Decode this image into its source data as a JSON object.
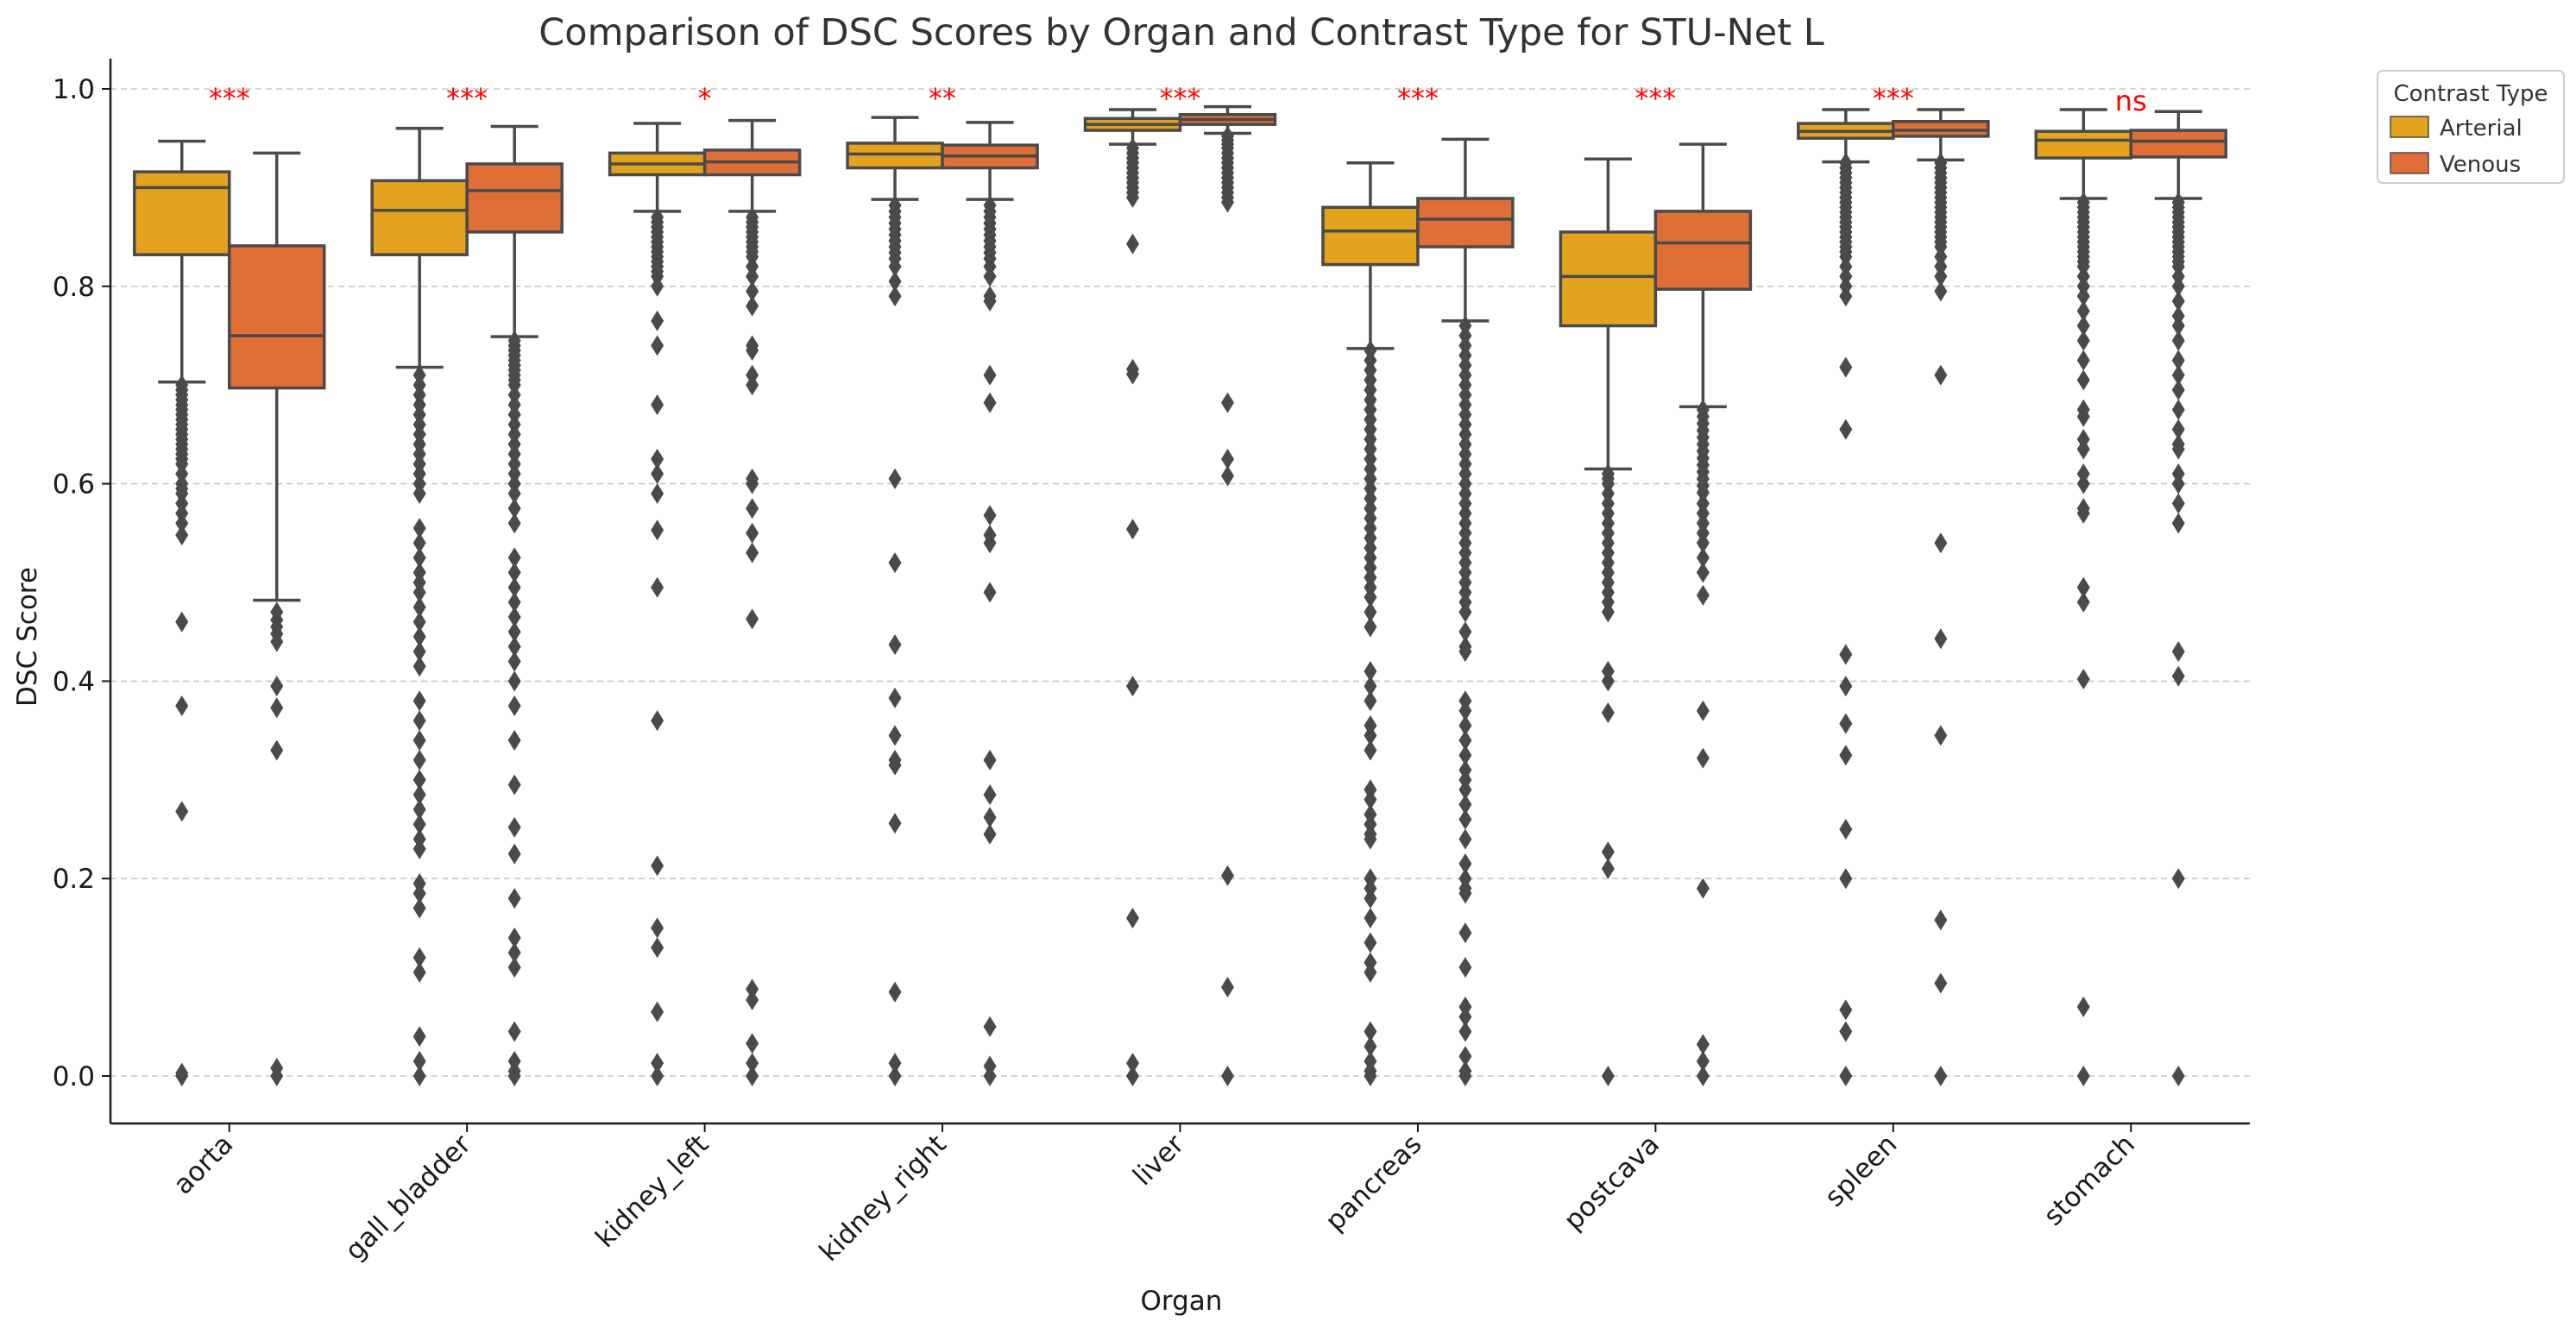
{
  "chart_data": {
    "type": "box",
    "title": "Comparison of DSC Scores by Organ and Contrast Type for STU-Net L",
    "xlabel": "Organ",
    "ylabel": "DSC Score",
    "ylim": [
      -0.05,
      1.03
    ],
    "yticks": [
      "0.0",
      "0.2",
      "0.4",
      "0.6",
      "0.8",
      "1.0"
    ],
    "grid": "horizontal dashed",
    "legend": {
      "title": "Contrast Type",
      "placement": "outside top-right",
      "entries": [
        "Arterial",
        "Venous"
      ]
    },
    "colors": {
      "Arterial": "#e3a31e",
      "Venous": "#e06f37",
      "lines": "#4a4a4a",
      "significance": "#ff0000",
      "grid": "#c8c8c8"
    },
    "categories": [
      "aorta",
      "gall_bladder",
      "kidney_left",
      "kidney_right",
      "liver",
      "pancreas",
      "postcava",
      "spleen",
      "stomach"
    ],
    "significance": [
      "***",
      "***",
      "*",
      "**",
      "***",
      "***",
      "***",
      "***",
      "ns"
    ],
    "series": [
      {
        "name": "Arterial",
        "boxes": [
          {
            "whislo": 0.703,
            "q1": 0.832,
            "med": 0.9,
            "q3": 0.916,
            "whishi": 0.947,
            "fliers": [
              0.7,
              0.695,
              0.69,
              0.685,
              0.68,
              0.675,
              0.67,
              0.665,
              0.66,
              0.655,
              0.65,
              0.645,
              0.64,
              0.635,
              0.63,
              0.625,
              0.62,
              0.61,
              0.6,
              0.595,
              0.59,
              0.58,
              0.57,
              0.56,
              0.548,
              0.46,
              0.375,
              0.268,
              0.003,
              0.0
            ]
          },
          {
            "whislo": 0.718,
            "q1": 0.832,
            "med": 0.877,
            "q3": 0.907,
            "whishi": 0.96,
            "fliers": [
              0.71,
              0.7,
              0.69,
              0.68,
              0.67,
              0.66,
              0.65,
              0.64,
              0.63,
              0.62,
              0.61,
              0.6,
              0.59,
              0.555,
              0.54,
              0.525,
              0.51,
              0.5,
              0.49,
              0.475,
              0.46,
              0.445,
              0.43,
              0.415,
              0.38,
              0.36,
              0.34,
              0.32,
              0.3,
              0.285,
              0.27,
              0.255,
              0.24,
              0.23,
              0.195,
              0.185,
              0.17,
              0.12,
              0.105,
              0.04,
              0.015,
              0.0
            ]
          },
          {
            "whislo": 0.876,
            "q1": 0.913,
            "med": 0.924,
            "q3": 0.935,
            "whishi": 0.965,
            "fliers": [
              0.87,
              0.865,
              0.86,
              0.855,
              0.85,
              0.845,
              0.84,
              0.835,
              0.83,
              0.825,
              0.82,
              0.815,
              0.81,
              0.8,
              0.765,
              0.74,
              0.68,
              0.625,
              0.61,
              0.59,
              0.553,
              0.495,
              0.36,
              0.213,
              0.15,
              0.13,
              0.065,
              0.013,
              0.0
            ]
          },
          {
            "whislo": 0.888,
            "q1": 0.92,
            "med": 0.934,
            "q3": 0.945,
            "whishi": 0.971,
            "fliers": [
              0.882,
              0.876,
              0.87,
              0.864,
              0.858,
              0.852,
              0.846,
              0.84,
              0.834,
              0.828,
              0.82,
              0.805,
              0.79,
              0.605,
              0.52,
              0.437,
              0.383,
              0.345,
              0.32,
              0.315,
              0.256,
              0.085,
              0.013,
              0.0
            ]
          },
          {
            "whislo": 0.944,
            "q1": 0.958,
            "med": 0.964,
            "q3": 0.97,
            "whishi": 0.979,
            "fliers": [
              0.94,
              0.935,
              0.93,
              0.925,
              0.92,
              0.915,
              0.91,
              0.905,
              0.9,
              0.895,
              0.89,
              0.843,
              0.716,
              0.711,
              0.554,
              0.395,
              0.16,
              0.013,
              0.0
            ]
          },
          {
            "whislo": 0.737,
            "q1": 0.822,
            "med": 0.856,
            "q3": 0.88,
            "whishi": 0.925,
            "fliers": [
              0.735,
              0.725,
              0.715,
              0.705,
              0.695,
              0.685,
              0.675,
              0.665,
              0.655,
              0.645,
              0.635,
              0.625,
              0.615,
              0.605,
              0.595,
              0.585,
              0.575,
              0.565,
              0.555,
              0.545,
              0.535,
              0.525,
              0.515,
              0.505,
              0.495,
              0.485,
              0.47,
              0.455,
              0.41,
              0.395,
              0.38,
              0.355,
              0.345,
              0.33,
              0.29,
              0.28,
              0.265,
              0.255,
              0.245,
              0.24,
              0.2,
              0.19,
              0.18,
              0.16,
              0.135,
              0.115,
              0.105,
              0.045,
              0.03,
              0.015,
              0.005,
              0.0
            ]
          },
          {
            "whislo": 0.615,
            "q1": 0.76,
            "med": 0.81,
            "q3": 0.855,
            "whishi": 0.929,
            "fliers": [
              0.61,
              0.605,
              0.6,
              0.59,
              0.58,
              0.57,
              0.56,
              0.55,
              0.54,
              0.53,
              0.52,
              0.51,
              0.5,
              0.49,
              0.48,
              0.47,
              0.41,
              0.4,
              0.368,
              0.227,
              0.21,
              0.0
            ]
          },
          {
            "whislo": 0.926,
            "q1": 0.95,
            "med": 0.957,
            "q3": 0.965,
            "whishi": 0.979,
            "fliers": [
              0.925,
              0.92,
              0.915,
              0.91,
              0.905,
              0.9,
              0.895,
              0.89,
              0.885,
              0.88,
              0.875,
              0.87,
              0.865,
              0.86,
              0.855,
              0.85,
              0.845,
              0.84,
              0.835,
              0.83,
              0.82,
              0.81,
              0.8,
              0.79,
              0.718,
              0.655,
              0.427,
              0.395,
              0.357,
              0.325,
              0.25,
              0.2,
              0.067,
              0.045,
              0.0
            ]
          },
          {
            "whislo": 0.889,
            "q1": 0.93,
            "med": 0.948,
            "q3": 0.957,
            "whishi": 0.979,
            "fliers": [
              0.885,
              0.88,
              0.875,
              0.87,
              0.865,
              0.86,
              0.855,
              0.85,
              0.845,
              0.84,
              0.835,
              0.83,
              0.825,
              0.82,
              0.81,
              0.8,
              0.79,
              0.775,
              0.76,
              0.745,
              0.725,
              0.705,
              0.675,
              0.668,
              0.645,
              0.635,
              0.61,
              0.6,
              0.575,
              0.57,
              0.495,
              0.48,
              0.402,
              0.07,
              0.0
            ]
          }
        ]
      },
      {
        "name": "Venous",
        "boxes": [
          {
            "whislo": 0.482,
            "q1": 0.697,
            "med": 0.75,
            "q3": 0.841,
            "whishi": 0.935,
            "fliers": [
              0.47,
              0.462,
              0.455,
              0.448,
              0.44,
              0.395,
              0.373,
              0.33,
              0.008,
              0.0
            ]
          },
          {
            "whislo": 0.749,
            "q1": 0.855,
            "med": 0.897,
            "q3": 0.924,
            "whishi": 0.962,
            "fliers": [
              0.745,
              0.74,
              0.735,
              0.73,
              0.725,
              0.72,
              0.715,
              0.71,
              0.705,
              0.7,
              0.69,
              0.68,
              0.67,
              0.66,
              0.65,
              0.64,
              0.63,
              0.62,
              0.61,
              0.6,
              0.59,
              0.575,
              0.56,
              0.525,
              0.51,
              0.495,
              0.48,
              0.465,
              0.45,
              0.435,
              0.42,
              0.4,
              0.375,
              0.34,
              0.295,
              0.252,
              0.225,
              0.18,
              0.14,
              0.125,
              0.11,
              0.045,
              0.015,
              0.005,
              0.0
            ]
          },
          {
            "whislo": 0.876,
            "q1": 0.913,
            "med": 0.926,
            "q3": 0.938,
            "whishi": 0.968,
            "fliers": [
              0.87,
              0.865,
              0.86,
              0.855,
              0.85,
              0.845,
              0.84,
              0.835,
              0.83,
              0.82,
              0.81,
              0.795,
              0.78,
              0.74,
              0.735,
              0.71,
              0.7,
              0.605,
              0.6,
              0.575,
              0.55,
              0.53,
              0.463,
              0.088,
              0.077,
              0.033,
              0.013,
              0.0
            ]
          },
          {
            "whislo": 0.888,
            "q1": 0.92,
            "med": 0.932,
            "q3": 0.943,
            "whishi": 0.966,
            "fliers": [
              0.882,
              0.876,
              0.87,
              0.864,
              0.858,
              0.852,
              0.846,
              0.84,
              0.834,
              0.828,
              0.82,
              0.81,
              0.79,
              0.785,
              0.71,
              0.682,
              0.568,
              0.548,
              0.54,
              0.49,
              0.32,
              0.285,
              0.262,
              0.245,
              0.05,
              0.01,
              0.0
            ]
          },
          {
            "whislo": 0.955,
            "q1": 0.964,
            "med": 0.969,
            "q3": 0.974,
            "whishi": 0.982,
            "fliers": [
              0.952,
              0.948,
              0.944,
              0.94,
              0.935,
              0.93,
              0.925,
              0.92,
              0.915,
              0.91,
              0.905,
              0.9,
              0.895,
              0.89,
              0.885,
              0.682,
              0.625,
              0.608,
              0.203,
              0.09,
              0.0
            ]
          },
          {
            "whislo": 0.765,
            "q1": 0.84,
            "med": 0.868,
            "q3": 0.889,
            "whishi": 0.949,
            "fliers": [
              0.76,
              0.75,
              0.74,
              0.73,
              0.72,
              0.71,
              0.7,
              0.69,
              0.68,
              0.67,
              0.66,
              0.65,
              0.64,
              0.63,
              0.62,
              0.61,
              0.6,
              0.59,
              0.58,
              0.57,
              0.56,
              0.55,
              0.54,
              0.53,
              0.52,
              0.51,
              0.5,
              0.49,
              0.48,
              0.47,
              0.45,
              0.435,
              0.43,
              0.38,
              0.37,
              0.355,
              0.34,
              0.325,
              0.31,
              0.3,
              0.29,
              0.275,
              0.26,
              0.24,
              0.215,
              0.2,
              0.19,
              0.185,
              0.145,
              0.11,
              0.07,
              0.06,
              0.045,
              0.02,
              0.005,
              0.0
            ]
          },
          {
            "whislo": 0.678,
            "q1": 0.797,
            "med": 0.844,
            "q3": 0.876,
            "whishi": 0.944,
            "fliers": [
              0.675,
              0.668,
              0.661,
              0.654,
              0.647,
              0.64,
              0.633,
              0.626,
              0.619,
              0.612,
              0.605,
              0.598,
              0.591,
              0.58,
              0.57,
              0.56,
              0.55,
              0.54,
              0.525,
              0.51,
              0.487,
              0.37,
              0.322,
              0.19,
              0.032,
              0.015,
              0.0
            ]
          },
          {
            "whislo": 0.928,
            "q1": 0.952,
            "med": 0.958,
            "q3": 0.967,
            "whishi": 0.979,
            "fliers": [
              0.925,
              0.92,
              0.915,
              0.91,
              0.905,
              0.9,
              0.895,
              0.89,
              0.885,
              0.88,
              0.875,
              0.87,
              0.865,
              0.86,
              0.855,
              0.85,
              0.845,
              0.84,
              0.83,
              0.82,
              0.81,
              0.795,
              0.71,
              0.54,
              0.443,
              0.345,
              0.158,
              0.094,
              0.0
            ]
          },
          {
            "whislo": 0.889,
            "q1": 0.931,
            "med": 0.947,
            "q3": 0.958,
            "whishi": 0.977,
            "fliers": [
              0.885,
              0.88,
              0.875,
              0.87,
              0.865,
              0.86,
              0.855,
              0.85,
              0.845,
              0.84,
              0.835,
              0.83,
              0.825,
              0.82,
              0.81,
              0.8,
              0.785,
              0.77,
              0.76,
              0.745,
              0.725,
              0.71,
              0.695,
              0.675,
              0.655,
              0.64,
              0.635,
              0.61,
              0.6,
              0.58,
              0.56,
              0.43,
              0.405,
              0.2,
              0.0
            ]
          }
        ]
      }
    ]
  }
}
